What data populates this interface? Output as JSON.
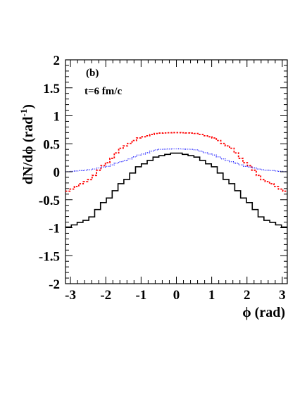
{
  "chart_data": {
    "type": "line",
    "panel_label": "(b)",
    "annotation": "t=6 fm/c",
    "xlabel": "ϕ (rad)",
    "ylabel": "dN/dϕ (rad",
    "ylabel_sup": "-1",
    "ylabel_close": ")",
    "xlim": [
      -3.1416,
      3.1416
    ],
    "ylim": [
      -2,
      2
    ],
    "xticks": [
      -3,
      -2,
      -1,
      0,
      1,
      2,
      3
    ],
    "xtick_labels": [
      "-3",
      "-2",
      "-1",
      "0",
      "1",
      "2",
      "3"
    ],
    "yticks": [
      -2,
      -1.5,
      -1,
      -0.5,
      0,
      0.5,
      1,
      1.5,
      2
    ],
    "ytick_labels": [
      "-2",
      "-1.5",
      "-1",
      "-0.5",
      "0",
      "0.5",
      "1",
      "1.5",
      "2"
    ],
    "grid": false,
    "series": [
      {
        "style": "histogram-solid",
        "color": "#000000",
        "x": [
          -3.1416,
          -2.5,
          -2.0,
          -1.5,
          -1.0,
          -0.5,
          0.0,
          0.5,
          1.0,
          1.5,
          2.0,
          2.5,
          3.1416
        ],
        "y": [
          -1.0,
          -0.86,
          -0.52,
          -0.18,
          0.12,
          0.28,
          0.34,
          0.28,
          0.12,
          -0.18,
          -0.52,
          -0.86,
          -1.0
        ]
      },
      {
        "style": "dashed",
        "color": "#ff0000",
        "x": [
          -3.1416,
          -2.5,
          -2.0,
          -1.5,
          -1.0,
          -0.5,
          0.0,
          0.5,
          1.0,
          1.5,
          2.0,
          2.5,
          3.1416
        ],
        "y": [
          -0.36,
          -0.16,
          0.14,
          0.45,
          0.62,
          0.69,
          0.7,
          0.69,
          0.62,
          0.45,
          0.14,
          -0.16,
          -0.36
        ]
      },
      {
        "style": "dotted",
        "color": "#0000ff",
        "x": [
          -3.1416,
          -2.5,
          -2.0,
          -1.5,
          -1.0,
          -0.5,
          0.0,
          0.5,
          1.0,
          1.5,
          2.0,
          2.5,
          3.1416
        ],
        "y": [
          0.0,
          0.03,
          0.09,
          0.19,
          0.31,
          0.4,
          0.41,
          0.4,
          0.31,
          0.19,
          0.09,
          0.03,
          0.0
        ]
      }
    ]
  }
}
